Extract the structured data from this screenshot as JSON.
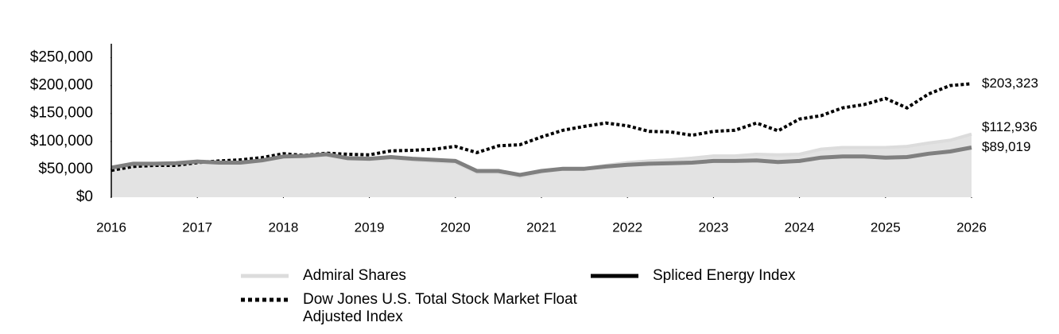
{
  "chart_data": {
    "type": "line",
    "x": [
      2016,
      2016.25,
      2016.5,
      2016.75,
      2017,
      2017.25,
      2017.5,
      2017.75,
      2018,
      2018.25,
      2018.5,
      2018.75,
      2019,
      2019.25,
      2019.5,
      2019.75,
      2020,
      2020.25,
      2020.5,
      2020.75,
      2021,
      2021.25,
      2021.5,
      2021.75,
      2022,
      2022.25,
      2022.5,
      2022.75,
      2023,
      2023.25,
      2023.5,
      2023.75,
      2024,
      2024.25,
      2024.5,
      2024.75,
      2025,
      2025.25,
      2025.5,
      2025.75,
      2026
    ],
    "xlim": [
      2016,
      2026
    ],
    "xticks": [
      2016,
      2017,
      2018,
      2019,
      2020,
      2021,
      2022,
      2023,
      2024,
      2025,
      2026
    ],
    "ylim": [
      0,
      275000
    ],
    "yticks": [
      {
        "value": 0,
        "label": "$0"
      },
      {
        "value": 50000,
        "label": "$50,000"
      },
      {
        "value": 100000,
        "label": "$100,000"
      },
      {
        "value": 150000,
        "label": "$150,000"
      },
      {
        "value": 200000,
        "label": "$200,000"
      },
      {
        "value": 250000,
        "label": "$250,000"
      }
    ],
    "series": [
      {
        "name": "Admiral Shares",
        "color": "#dcdcdc",
        "values": [
          50000,
          58000,
          58000,
          60000,
          63000,
          61000,
          61000,
          65000,
          72000,
          72000,
          75000,
          68000,
          67000,
          70000,
          66000,
          64000,
          62000,
          44000,
          44000,
          36000,
          45000,
          50000,
          51000,
          57000,
          62000,
          65000,
          67000,
          70000,
          74000,
          74000,
          77000,
          76000,
          77000,
          86000,
          89000,
          89000,
          89000,
          91000,
          97000,
          102000,
          112936
        ],
        "value_labels": [
          null,
          null,
          null,
          null,
          null,
          null,
          null,
          null,
          null,
          null,
          null,
          null,
          null,
          null,
          null,
          null,
          null,
          null,
          null,
          null,
          null,
          null,
          null,
          null,
          null,
          null,
          null,
          null,
          null,
          null,
          null,
          null,
          null,
          null,
          null,
          null,
          null,
          null,
          null,
          null,
          "$112,936"
        ]
      },
      {
        "name": "Dow Jones U.S. Total Stock Market Float Adjusted Index",
        "color": "#000000",
        "values": [
          48000,
          55000,
          57000,
          57000,
          62000,
          65000,
          67000,
          71000,
          78000,
          75000,
          79000,
          77000,
          76000,
          83000,
          84000,
          86000,
          91000,
          80000,
          92000,
          94000,
          108000,
          120000,
          127000,
          133000,
          128000,
          118000,
          117000,
          111000,
          118000,
          120000,
          133000,
          119000,
          140000,
          146000,
          160000,
          166000,
          177000,
          160000,
          185000,
          200000,
          203323
        ],
        "value_labels": [
          null,
          null,
          null,
          null,
          null,
          null,
          null,
          null,
          null,
          null,
          null,
          null,
          null,
          null,
          null,
          null,
          null,
          null,
          null,
          null,
          null,
          null,
          null,
          null,
          null,
          null,
          null,
          null,
          null,
          null,
          null,
          null,
          null,
          null,
          null,
          null,
          null,
          null,
          null,
          null,
          "$203,323"
        ]
      },
      {
        "name": "Spliced Energy Index",
        "color": "#808080",
        "values": [
          53000,
          60000,
          60000,
          61000,
          64000,
          62000,
          62000,
          66000,
          73000,
          74000,
          77000,
          70000,
          69000,
          72000,
          69000,
          67000,
          65000,
          47000,
          47000,
          40000,
          47000,
          51000,
          51000,
          55000,
          58000,
          60000,
          61000,
          62000,
          65000,
          65000,
          66000,
          63000,
          65000,
          71000,
          73000,
          73000,
          71000,
          72000,
          78000,
          82000,
          89019
        ],
        "value_labels": [
          null,
          null,
          null,
          null,
          null,
          null,
          null,
          null,
          null,
          null,
          null,
          null,
          null,
          null,
          null,
          null,
          null,
          null,
          null,
          null,
          null,
          null,
          null,
          null,
          null,
          null,
          null,
          null,
          null,
          null,
          null,
          null,
          null,
          null,
          null,
          null,
          null,
          null,
          null,
          null,
          "$89,019"
        ]
      }
    ]
  }
}
